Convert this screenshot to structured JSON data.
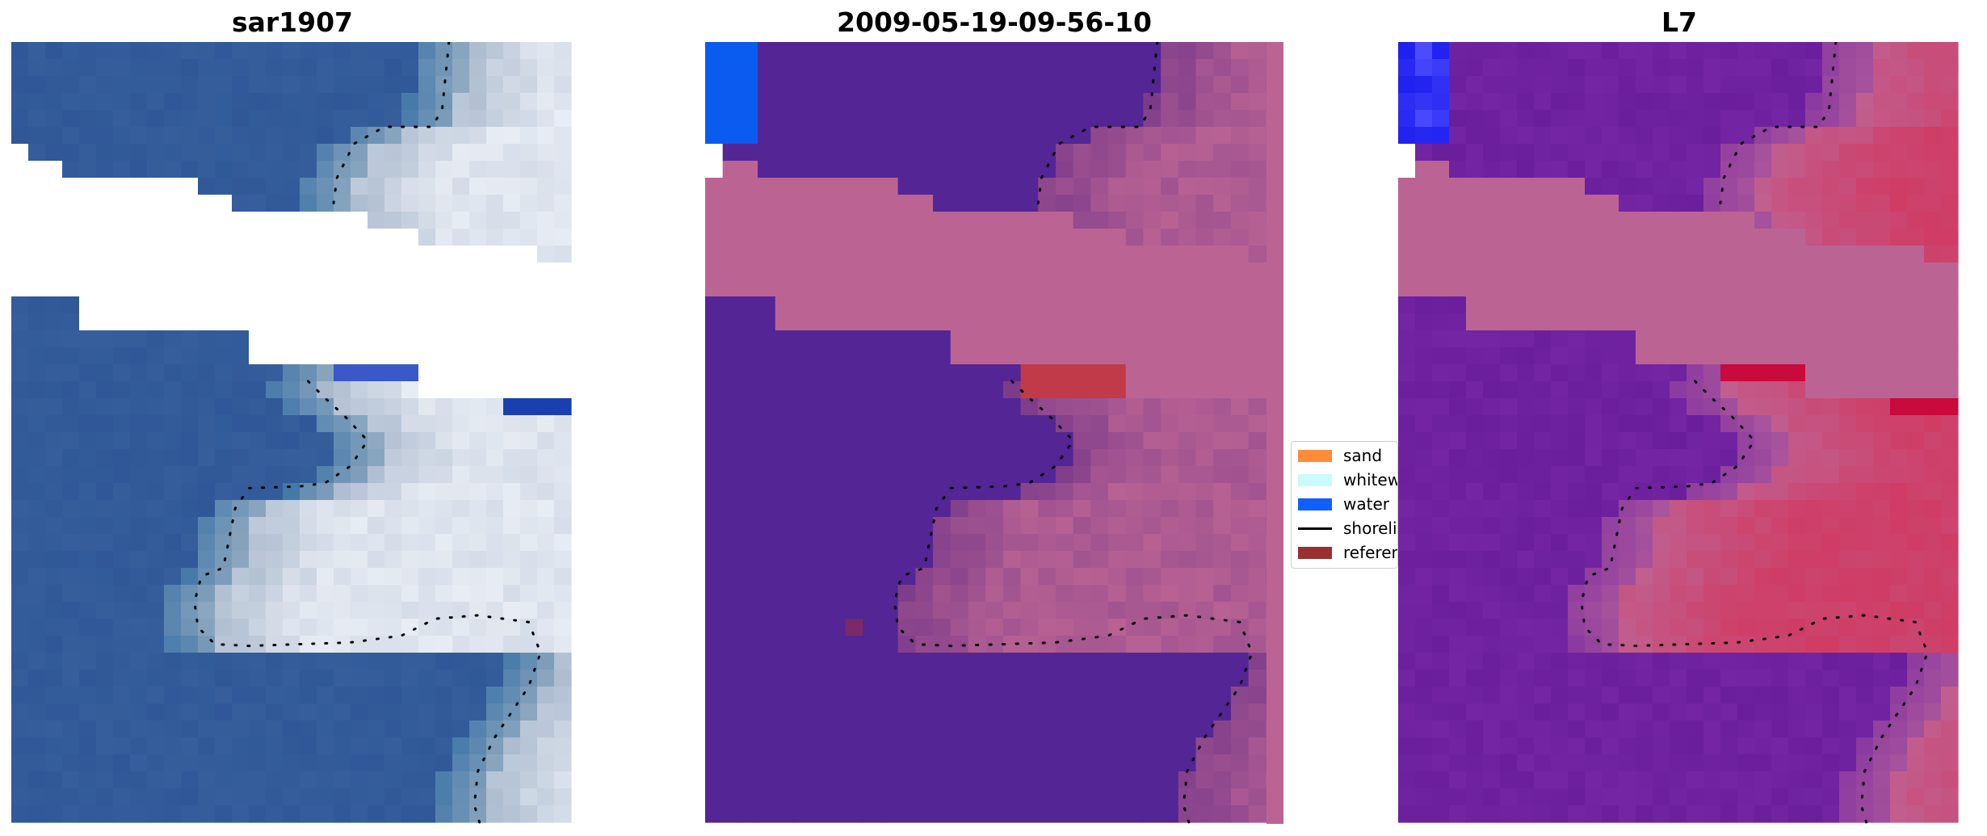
{
  "chart_data": [
    {
      "type": "heatmap",
      "title": "sar1907",
      "content": "RGB satellite image patch with detected shoreline",
      "series": [
        {
          "name": "shoreline",
          "style": "dotted black line"
        }
      ]
    },
    {
      "type": "heatmap",
      "title": "2009-05-19-09-56-10",
      "content": "pixel classification map with detected shoreline",
      "series": [
        {
          "name": "shoreline",
          "style": "dotted black line"
        }
      ]
    },
    {
      "type": "heatmap",
      "title": "L7",
      "content": "probability map with detected shoreline",
      "series": [
        {
          "name": "shoreline",
          "style": "dotted black line"
        }
      ]
    }
  ],
  "legend": {
    "placement": "between center and right panels",
    "items": [
      {
        "label": "sand",
        "color": "#ff8c3a",
        "kind": "patch"
      },
      {
        "label": "whitewater",
        "color": "#c9fbfb",
        "kind": "patch"
      },
      {
        "label": "water",
        "color": "#1060ff",
        "kind": "patch"
      },
      {
        "label": "shoreline",
        "color": "#000000",
        "kind": "line"
      },
      {
        "label": "reference",
        "color": "#9b3030",
        "kind": "patch"
      }
    ]
  },
  "colors": {
    "deep_water_rgb": "#305898",
    "whitewater_rgb": "#e8ecf4",
    "class_water": "#542594",
    "class_other": "#bb6494",
    "class_blue": "#0a5cf0",
    "class_red": "#c03a4a",
    "prob_purple": "#6a1e9c",
    "prob_pink": "#c8587e",
    "prob_red": "#c80a3c",
    "nodata": "#ffffff"
  }
}
